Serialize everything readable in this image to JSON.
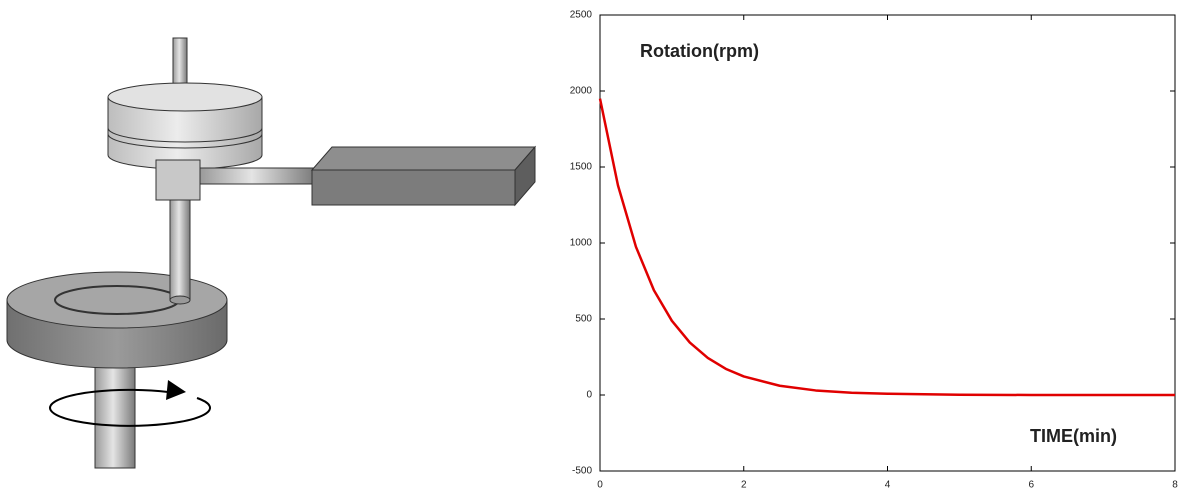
{
  "chart_data": {
    "type": "line",
    "ylabel": "Rotation(rpm)",
    "xlabel": "TIME(min)",
    "x": [
      0,
      0.25,
      0.5,
      0.75,
      1,
      1.25,
      1.5,
      1.75,
      2,
      2.5,
      3,
      3.5,
      4,
      5,
      6,
      7,
      8
    ],
    "values": [
      1950,
      1379,
      975,
      689,
      488,
      345,
      244,
      172,
      122,
      61,
      30,
      15,
      8,
      2,
      0,
      0,
      0
    ],
    "color": "#e00000",
    "xlim": [
      0,
      8
    ],
    "xticks": [
      0,
      2,
      4,
      6,
      8
    ],
    "ylim": [
      -500,
      2500
    ],
    "yticks": [
      -500,
      0,
      500,
      1000,
      1500,
      2000,
      2500
    ]
  }
}
